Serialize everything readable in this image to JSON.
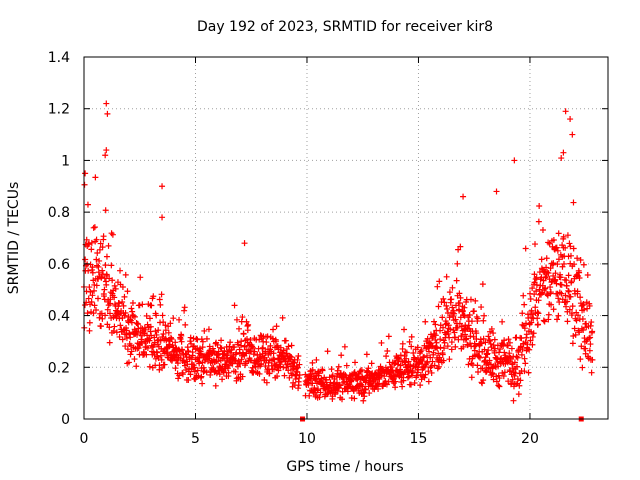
{
  "chart_data": {
    "type": "scatter",
    "title": "Day 192 of 2023, SRMTID for receiver kir8",
    "xlabel": "GPS time / hours",
    "ylabel": "SRMTID / TECUs",
    "xlim": [
      0,
      23.5
    ],
    "ylim": [
      0,
      1.4
    ],
    "x_ticks": [
      0,
      5,
      10,
      15,
      20
    ],
    "x_tick_labels": [
      "0",
      "5",
      "10",
      "15",
      "20"
    ],
    "y_ticks": [
      0,
      0.2,
      0.4,
      0.6,
      0.8,
      1.0,
      1.2,
      1.4
    ],
    "y_tick_labels": [
      "0",
      "0.2",
      "0.4",
      "0.6",
      "0.8",
      "1",
      "1.2",
      "1.4"
    ],
    "grid": true,
    "marker": "plus",
    "color": "#ff0000",
    "data_gaps_at_x": [
      9.8,
      22.3
    ],
    "envelope": [
      {
        "x": 0.0,
        "median": 0.52,
        "spread": 0.26
      },
      {
        "x": 0.5,
        "median": 0.55,
        "spread": 0.24
      },
      {
        "x": 1.0,
        "median": 0.5,
        "spread": 0.24
      },
      {
        "x": 1.5,
        "median": 0.42,
        "spread": 0.2
      },
      {
        "x": 2.0,
        "median": 0.35,
        "spread": 0.17
      },
      {
        "x": 3.0,
        "median": 0.3,
        "spread": 0.15
      },
      {
        "x": 4.0,
        "median": 0.25,
        "spread": 0.12
      },
      {
        "x": 5.0,
        "median": 0.23,
        "spread": 0.11
      },
      {
        "x": 6.0,
        "median": 0.22,
        "spread": 0.1
      },
      {
        "x": 7.0,
        "median": 0.25,
        "spread": 0.12
      },
      {
        "x": 8.0,
        "median": 0.24,
        "spread": 0.12
      },
      {
        "x": 9.0,
        "median": 0.23,
        "spread": 0.1
      },
      {
        "x": 10.0,
        "median": 0.14,
        "spread": 0.07
      },
      {
        "x": 11.0,
        "median": 0.13,
        "spread": 0.07
      },
      {
        "x": 12.0,
        "median": 0.14,
        "spread": 0.08
      },
      {
        "x": 13.0,
        "median": 0.15,
        "spread": 0.08
      },
      {
        "x": 14.0,
        "median": 0.19,
        "spread": 0.1
      },
      {
        "x": 15.0,
        "median": 0.21,
        "spread": 0.11
      },
      {
        "x": 16.0,
        "median": 0.3,
        "spread": 0.18
      },
      {
        "x": 16.7,
        "median": 0.42,
        "spread": 0.22
      },
      {
        "x": 17.5,
        "median": 0.3,
        "spread": 0.18
      },
      {
        "x": 18.5,
        "median": 0.22,
        "spread": 0.14
      },
      {
        "x": 19.5,
        "median": 0.22,
        "spread": 0.16
      },
      {
        "x": 20.2,
        "median": 0.45,
        "spread": 0.24
      },
      {
        "x": 21.0,
        "median": 0.55,
        "spread": 0.28
      },
      {
        "x": 21.7,
        "median": 0.55,
        "spread": 0.32
      },
      {
        "x": 22.2,
        "median": 0.42,
        "spread": 0.26
      },
      {
        "x": 22.8,
        "median": 0.32,
        "spread": 0.2
      }
    ],
    "notable_points": [
      {
        "x": 1.0,
        "y": 1.22
      },
      {
        "x": 1.05,
        "y": 1.18
      },
      {
        "x": 1.0,
        "y": 1.04
      },
      {
        "x": 0.95,
        "y": 1.02
      },
      {
        "x": 0.05,
        "y": 0.95
      },
      {
        "x": 3.5,
        "y": 0.9
      },
      {
        "x": 3.5,
        "y": 0.78
      },
      {
        "x": 7.2,
        "y": 0.68
      },
      {
        "x": 19.3,
        "y": 1.0
      },
      {
        "x": 21.6,
        "y": 1.19
      },
      {
        "x": 21.8,
        "y": 1.16
      },
      {
        "x": 21.9,
        "y": 1.1
      },
      {
        "x": 21.5,
        "y": 1.03
      },
      {
        "x": 17.0,
        "y": 0.86
      },
      {
        "x": 18.5,
        "y": 0.88
      }
    ]
  }
}
